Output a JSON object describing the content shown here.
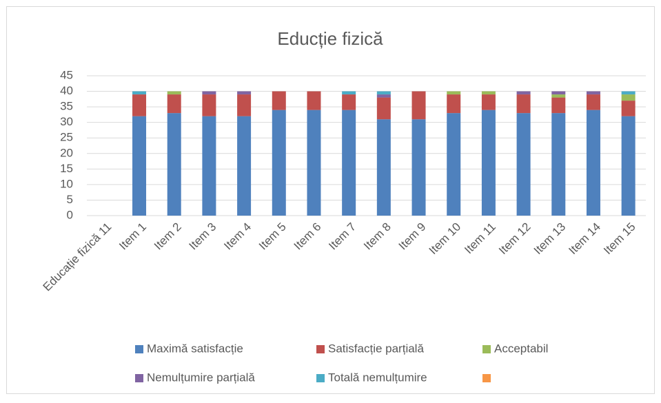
{
  "chart_data": {
    "type": "stacked_bar",
    "title": "Educție fizică",
    "categories": [
      "Educație fizică 11",
      "Item 1",
      "Item 2",
      "Item 3",
      "Item 4",
      "Item 5",
      "Item 6",
      "Item 7",
      "Item 8",
      "Item 9",
      "Item 10",
      "Item 11",
      "Item 12",
      "Item 13",
      "Item 14",
      "Item 15"
    ],
    "series": [
      {
        "name": "Maximă satisfacție",
        "color": "#4f81bd",
        "values": [
          null,
          32,
          33,
          32,
          32,
          34,
          34,
          34,
          31,
          31,
          33,
          34,
          33,
          33,
          34,
          32
        ]
      },
      {
        "name": "Satisfacție parțială",
        "color": "#c0504d",
        "values": [
          null,
          7,
          6,
          7,
          7,
          6,
          6,
          5,
          7,
          9,
          6,
          5,
          6,
          5,
          5,
          5
        ]
      },
      {
        "name": "Acceptabil",
        "color": "#9bbb59",
        "values": [
          null,
          0,
          1,
          0,
          0,
          0,
          0,
          0,
          0,
          0,
          1,
          1,
          0,
          1,
          0,
          2
        ]
      },
      {
        "name": "Nemulțumire parțială",
        "color": "#8064a2",
        "values": [
          null,
          0,
          0,
          1,
          1,
          0,
          0,
          0,
          1,
          0,
          0,
          0,
          1,
          1,
          1,
          0
        ]
      },
      {
        "name": "Totală nemulțumire",
        "color": "#4bacc6",
        "values": [
          null,
          1,
          0,
          0,
          0,
          0,
          0,
          1,
          1,
          0,
          0,
          0,
          0,
          0,
          0,
          1
        ]
      },
      {
        "color": "#f79646",
        "values": [
          null,
          0,
          0,
          0,
          0,
          0,
          0,
          0,
          0,
          0,
          0,
          0,
          0,
          0,
          0,
          0
        ]
      }
    ],
    "ylim": [
      0,
      45
    ],
    "yticks": [
      0,
      5,
      10,
      15,
      20,
      25,
      30,
      35,
      40,
      45
    ],
    "grid": true
  }
}
